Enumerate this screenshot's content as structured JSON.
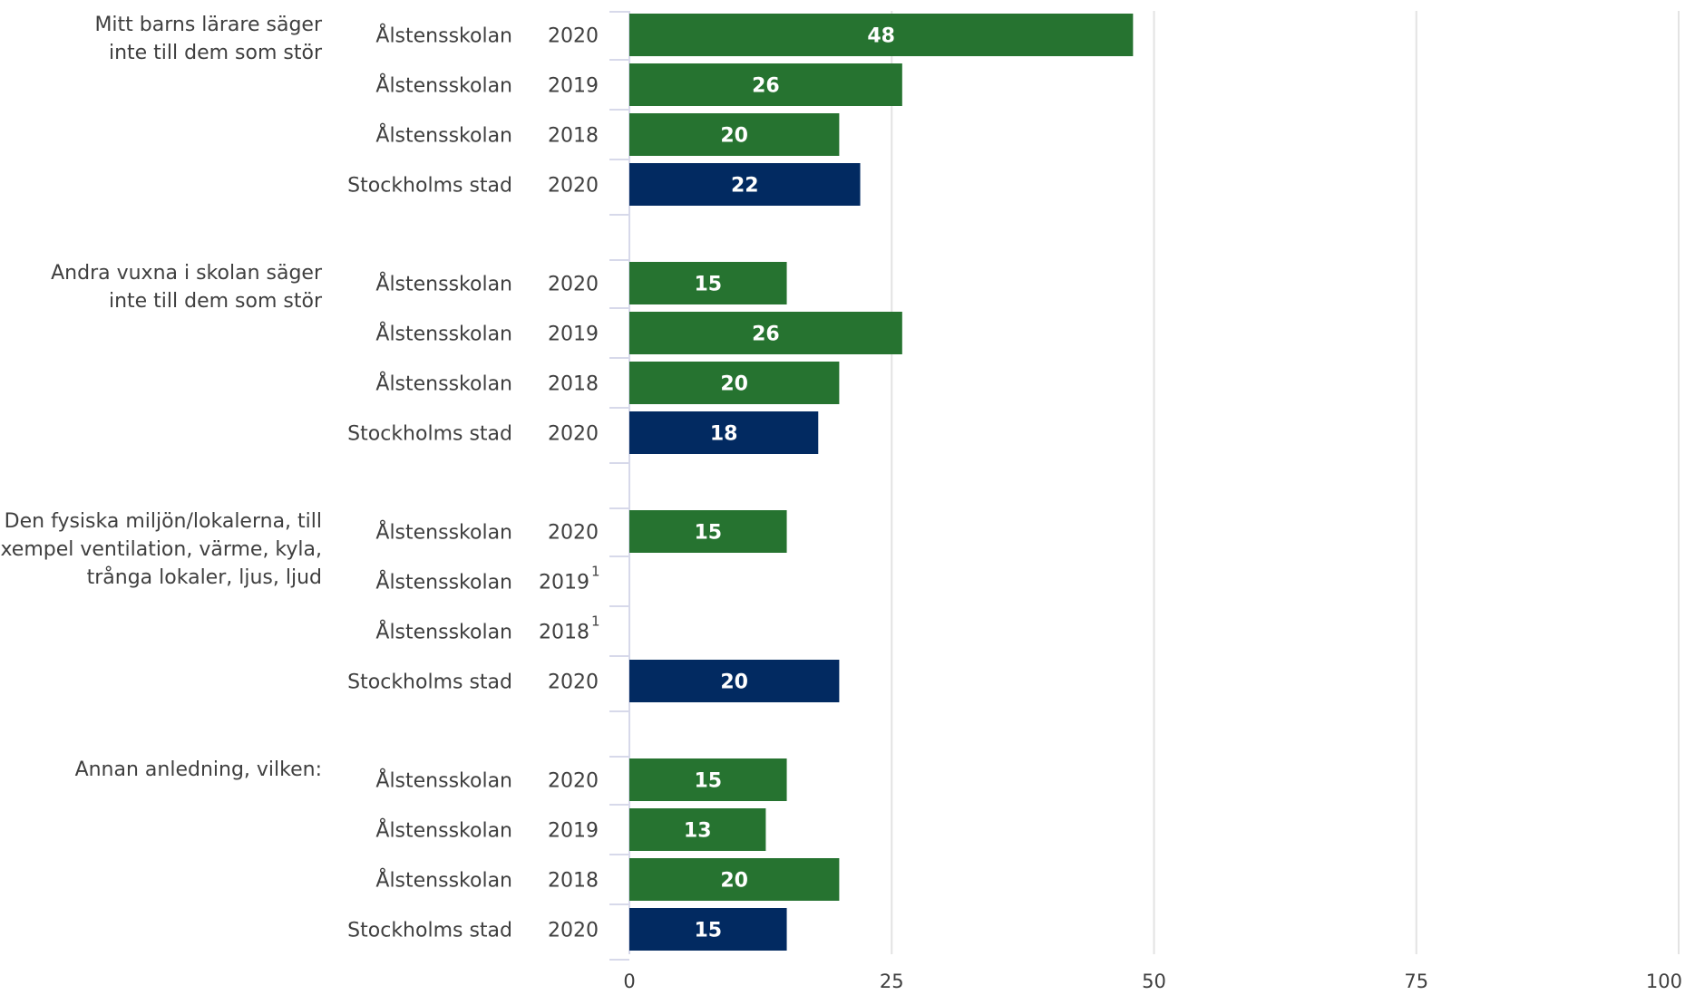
{
  "colors": {
    "school": "#267330",
    "city": "#022a61"
  },
  "chart_data": {
    "type": "bar",
    "orientation": "horizontal",
    "xlim": [
      0,
      100
    ],
    "x_ticks": [
      "0",
      "25",
      "50",
      "75",
      "100"
    ],
    "grid": true,
    "groups": [
      {
        "label_lines": [
          "Mitt barns lärare säger",
          "inte till dem som stör"
        ],
        "rows": [
          {
            "name": "Ålstensskolan",
            "year": "2020",
            "sup": "",
            "value": 48,
            "label": "48",
            "kind": "school"
          },
          {
            "name": "Ålstensskolan",
            "year": "2019",
            "sup": "",
            "value": 26,
            "label": "26",
            "kind": "school"
          },
          {
            "name": "Ålstensskolan",
            "year": "2018",
            "sup": "",
            "value": 20,
            "label": "20",
            "kind": "school"
          },
          {
            "name": "Stockholms stad",
            "year": "2020",
            "sup": "",
            "value": 22,
            "label": "22",
            "kind": "city"
          }
        ]
      },
      {
        "label_lines": [
          "Andra vuxna i skolan säger",
          "inte till dem som stör"
        ],
        "rows": [
          {
            "name": "Ålstensskolan",
            "year": "2020",
            "sup": "",
            "value": 15,
            "label": "15",
            "kind": "school"
          },
          {
            "name": "Ålstensskolan",
            "year": "2019",
            "sup": "",
            "value": 26,
            "label": "26",
            "kind": "school"
          },
          {
            "name": "Ålstensskolan",
            "year": "2018",
            "sup": "",
            "value": 20,
            "label": "20",
            "kind": "school"
          },
          {
            "name": "Stockholms stad",
            "year": "2020",
            "sup": "",
            "value": 18,
            "label": "18",
            "kind": "city"
          }
        ]
      },
      {
        "label_lines": [
          "Den fysiska miljön/lokalerna, till",
          "exempel ventilation, värme, kyla,",
          "trånga lokaler, ljus, ljud"
        ],
        "rows": [
          {
            "name": "Ålstensskolan",
            "year": "2020",
            "sup": "",
            "value": 15,
            "label": "15",
            "kind": "school"
          },
          {
            "name": "Ålstensskolan",
            "year": "2019",
            "sup": "1",
            "value": null,
            "label": "",
            "kind": "school"
          },
          {
            "name": "Ålstensskolan",
            "year": "2018",
            "sup": "1",
            "value": null,
            "label": "",
            "kind": "school"
          },
          {
            "name": "Stockholms stad",
            "year": "2020",
            "sup": "",
            "value": 20,
            "label": "20",
            "kind": "city"
          }
        ]
      },
      {
        "label_lines": [
          "Annan anledning, vilken:"
        ],
        "rows": [
          {
            "name": "Ålstensskolan",
            "year": "2020",
            "sup": "",
            "value": 15,
            "label": "15",
            "kind": "school"
          },
          {
            "name": "Ålstensskolan",
            "year": "2019",
            "sup": "",
            "value": 13,
            "label": "13",
            "kind": "school"
          },
          {
            "name": "Ålstensskolan",
            "year": "2018",
            "sup": "",
            "value": 20,
            "label": "20",
            "kind": "school"
          },
          {
            "name": "Stockholms stad",
            "year": "2020",
            "sup": "",
            "value": 15,
            "label": "15",
            "kind": "city"
          }
        ]
      }
    ]
  }
}
